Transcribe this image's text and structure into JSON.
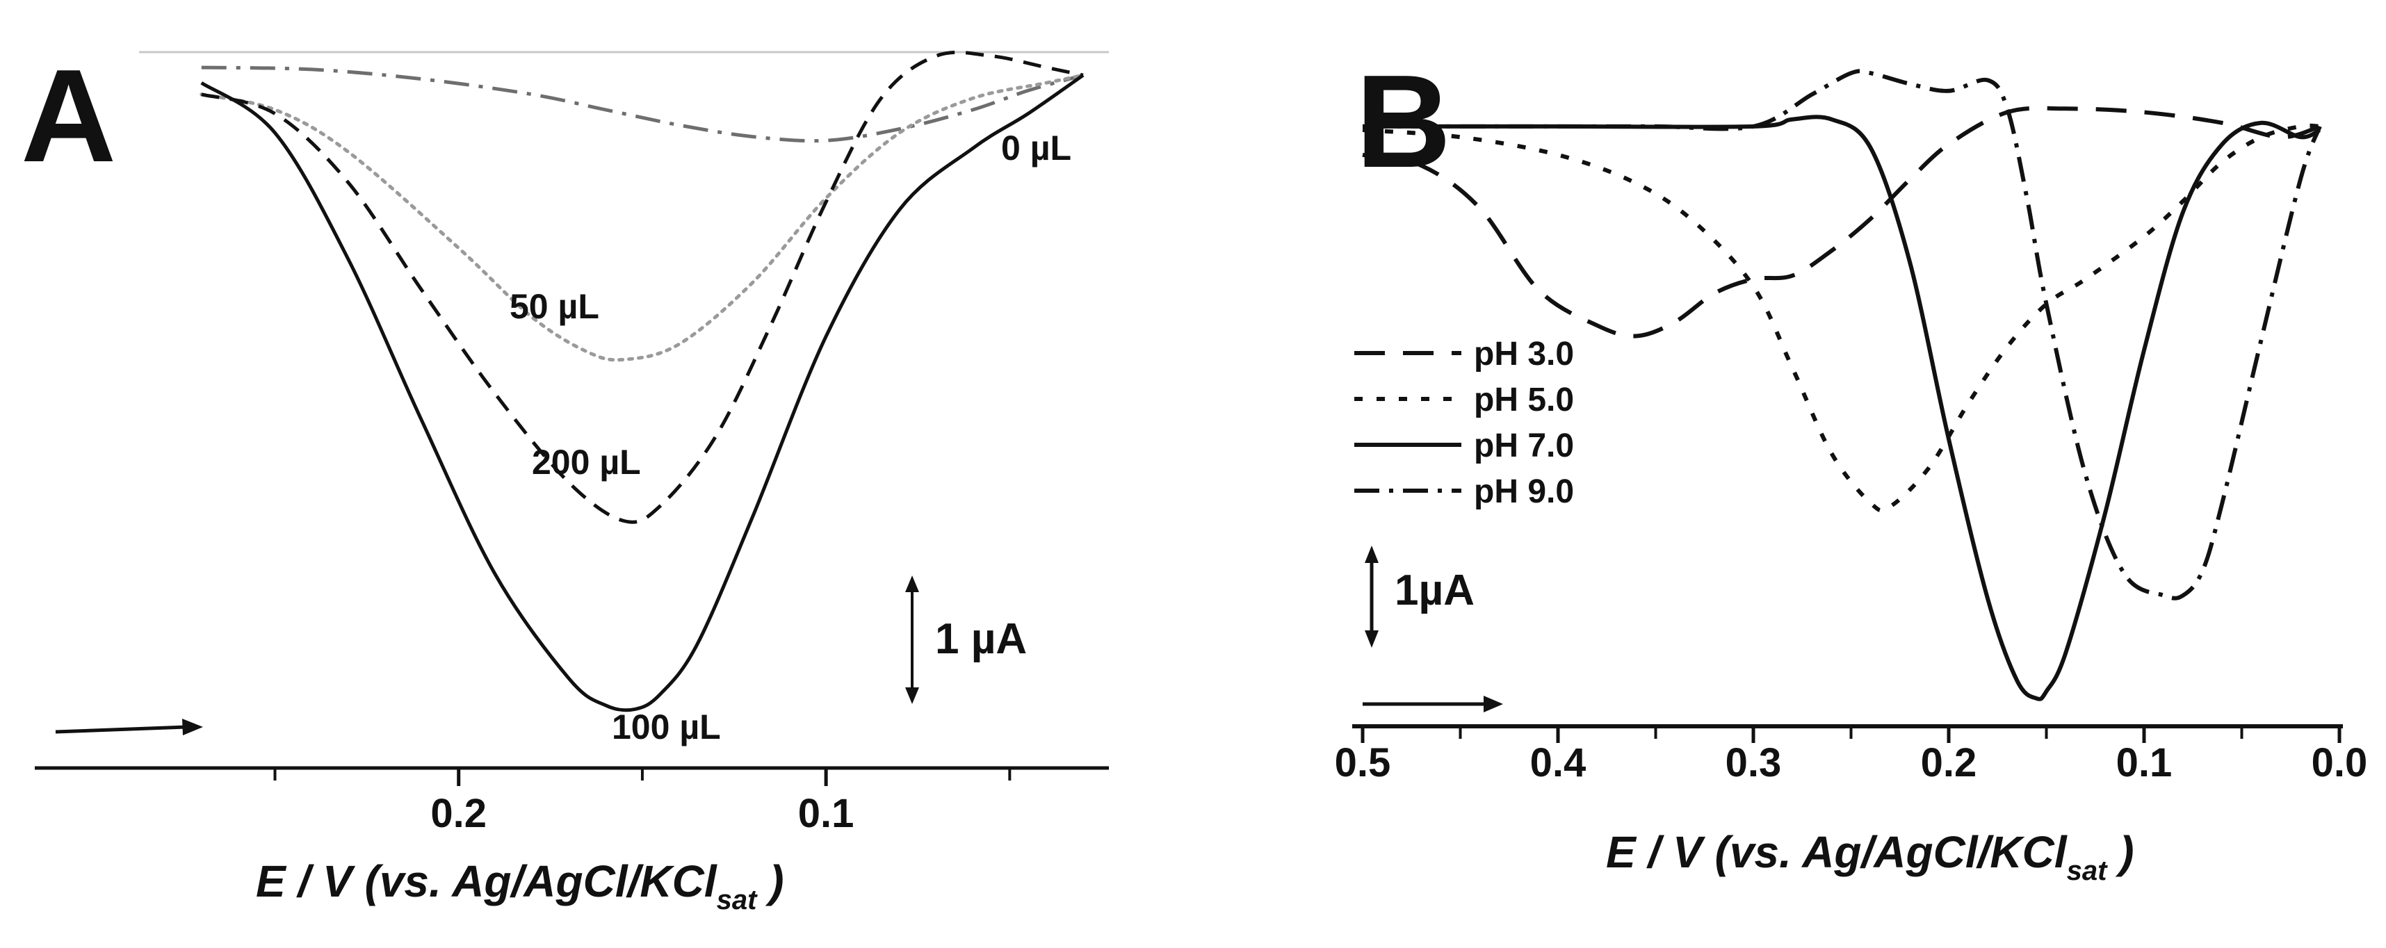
{
  "chart_data": [
    {
      "panel": "A",
      "type": "line",
      "xlabel": "E / V (vs. Ag/AgCl/KCl",
      "xlabel_subscript": "sat",
      "xlabel_close": " )",
      "xlim": [
        0.287,
        0.023
      ],
      "x_ticks": [
        "0.2",
        "0.1"
      ],
      "x_tick_values": [
        0.2,
        0.1
      ],
      "x_minor_ticks": [
        0.25,
        0.15,
        0.05
      ],
      "ylim": [
        -17.0,
        0.6
      ],
      "ylabel": "",
      "grid": false,
      "scale_bar": {
        "label": "1 µA",
        "value": 1
      },
      "scan_direction_arrow": "left-to-right",
      "series": [
        {
          "label": "0 µL",
          "style": "dash-dot",
          "x": [
            0.27,
            0.24,
            0.21,
            0.18,
            0.16,
            0.14,
            0.12,
            0.1,
            0.08,
            0.06,
            0.045,
            0.03
          ],
          "y": [
            0.2,
            0.15,
            -0.1,
            -0.5,
            -0.9,
            -1.3,
            -1.6,
            -1.7,
            -1.4,
            -0.9,
            -0.4,
            0.0
          ]
        },
        {
          "label": "50 µL",
          "style": "dotted",
          "x": [
            0.27,
            0.25,
            0.23,
            0.2,
            0.18,
            0.165,
            0.155,
            0.14,
            0.12,
            0.1,
            0.08,
            0.06,
            0.04,
            0.03
          ],
          "y": [
            -0.5,
            -0.9,
            -2.0,
            -4.5,
            -6.3,
            -7.2,
            -7.4,
            -7.0,
            -5.4,
            -3.2,
            -1.5,
            -0.6,
            -0.2,
            0.0
          ]
        },
        {
          "label": "200 µL",
          "style": "dashed",
          "x": [
            0.27,
            0.25,
            0.23,
            0.21,
            0.19,
            0.17,
            0.155,
            0.145,
            0.13,
            0.115,
            0.1,
            0.085,
            0.07,
            0.055,
            0.04,
            0.03
          ],
          "y": [
            -0.5,
            -1.0,
            -2.8,
            -5.6,
            -8.3,
            -10.6,
            -11.6,
            -11.2,
            -9.4,
            -6.5,
            -3.3,
            -0.6,
            0.5,
            0.5,
            0.2,
            0.0
          ]
        },
        {
          "label": "100 µL",
          "style": "solid",
          "x": [
            0.27,
            0.25,
            0.23,
            0.21,
            0.19,
            0.17,
            0.16,
            0.152,
            0.145,
            0.135,
            0.12,
            0.1,
            0.08,
            0.06,
            0.045,
            0.03
          ],
          "y": [
            -0.2,
            -1.5,
            -4.8,
            -9.0,
            -13.0,
            -15.7,
            -16.4,
            -16.5,
            -16.1,
            -14.8,
            -11.5,
            -6.8,
            -3.5,
            -1.9,
            -1.0,
            0.0
          ]
        }
      ],
      "curve_labels": [
        "0 µL",
        "50 µL",
        "200 µL",
        "100 µL"
      ]
    },
    {
      "panel": "B",
      "type": "line",
      "xlabel": "E / V (vs. Ag/AgCl/KCl",
      "xlabel_subscript": "sat",
      "xlabel_close": " )",
      "xlim": [
        0.5,
        0.0
      ],
      "x_ticks": [
        "0.5",
        "0.4",
        "0.3",
        "0.2",
        "0.1",
        "0.0"
      ],
      "x_tick_values": [
        0.5,
        0.4,
        0.3,
        0.2,
        0.1,
        0.0
      ],
      "x_minor_ticks": [
        0.45,
        0.35,
        0.25,
        0.15,
        0.05
      ],
      "ylim": [
        -16.2,
        1.7
      ],
      "ylabel": "",
      "grid": false,
      "legend_position": "center-left",
      "scale_bar": {
        "label": "1µA",
        "value": 1
      },
      "scan_direction_arrow": "left-to-right",
      "series": [
        {
          "name": "pH 3.0",
          "style": "long-dash",
          "x": [
            0.5,
            0.47,
            0.44,
            0.41,
            0.38,
            0.36,
            0.34,
            0.32,
            0.3,
            0.28,
            0.26,
            0.24,
            0.22,
            0.2,
            0.17,
            0.14,
            0.1,
            0.06,
            0.03,
            0.01
          ],
          "y": [
            -0.8,
            -1.1,
            -2.3,
            -4.6,
            -5.6,
            -5.9,
            -5.5,
            -4.7,
            -4.3,
            -4.2,
            -3.5,
            -2.6,
            -1.5,
            -0.5,
            0.4,
            0.5,
            0.4,
            0.1,
            -0.3,
            0.0
          ]
        },
        {
          "name": "pH 5.0",
          "style": "short-dash",
          "x": [
            0.5,
            0.45,
            0.4,
            0.36,
            0.33,
            0.3,
            0.28,
            0.26,
            0.24,
            0.23,
            0.21,
            0.19,
            0.17,
            0.15,
            0.13,
            0.1,
            0.08,
            0.06,
            0.04,
            0.02,
            0.01
          ],
          "y": [
            -0.1,
            -0.3,
            -0.8,
            -1.6,
            -2.7,
            -4.5,
            -6.8,
            -9.2,
            -10.6,
            -10.7,
            -9.6,
            -7.8,
            -6.2,
            -5.0,
            -4.3,
            -3.1,
            -2.1,
            -1.0,
            -0.3,
            0.0,
            0.0
          ]
        },
        {
          "name": "pH 7.0",
          "style": "solid",
          "x": [
            0.5,
            0.4,
            0.3,
            0.28,
            0.26,
            0.24,
            0.22,
            0.2,
            0.18,
            0.165,
            0.155,
            0.15,
            0.14,
            0.12,
            0.1,
            0.08,
            0.06,
            0.04,
            0.02,
            0.01
          ],
          "y": [
            0.0,
            0.0,
            0.0,
            0.2,
            0.2,
            -0.6,
            -3.8,
            -8.8,
            -13.3,
            -15.6,
            -16.1,
            -15.9,
            -14.8,
            -10.9,
            -6.3,
            -2.4,
            -0.5,
            0.1,
            -0.3,
            -0.1
          ]
        },
        {
          "name": "pH 9.0",
          "style": "dash-dot",
          "x": [
            0.5,
            0.4,
            0.35,
            0.3,
            0.27,
            0.25,
            0.24,
            0.22,
            0.2,
            0.18,
            0.17,
            0.16,
            0.15,
            0.13,
            0.11,
            0.09,
            0.08,
            0.07,
            0.06,
            0.04,
            0.02,
            0.01
          ],
          "y": [
            0.0,
            0.0,
            0.0,
            0.0,
            0.9,
            1.5,
            1.5,
            1.2,
            1.0,
            1.3,
            0.5,
            -2.0,
            -5.0,
            -9.8,
            -12.6,
            -13.2,
            -13.2,
            -12.5,
            -10.6,
            -6.0,
            -1.5,
            0.0
          ]
        }
      ]
    }
  ]
}
